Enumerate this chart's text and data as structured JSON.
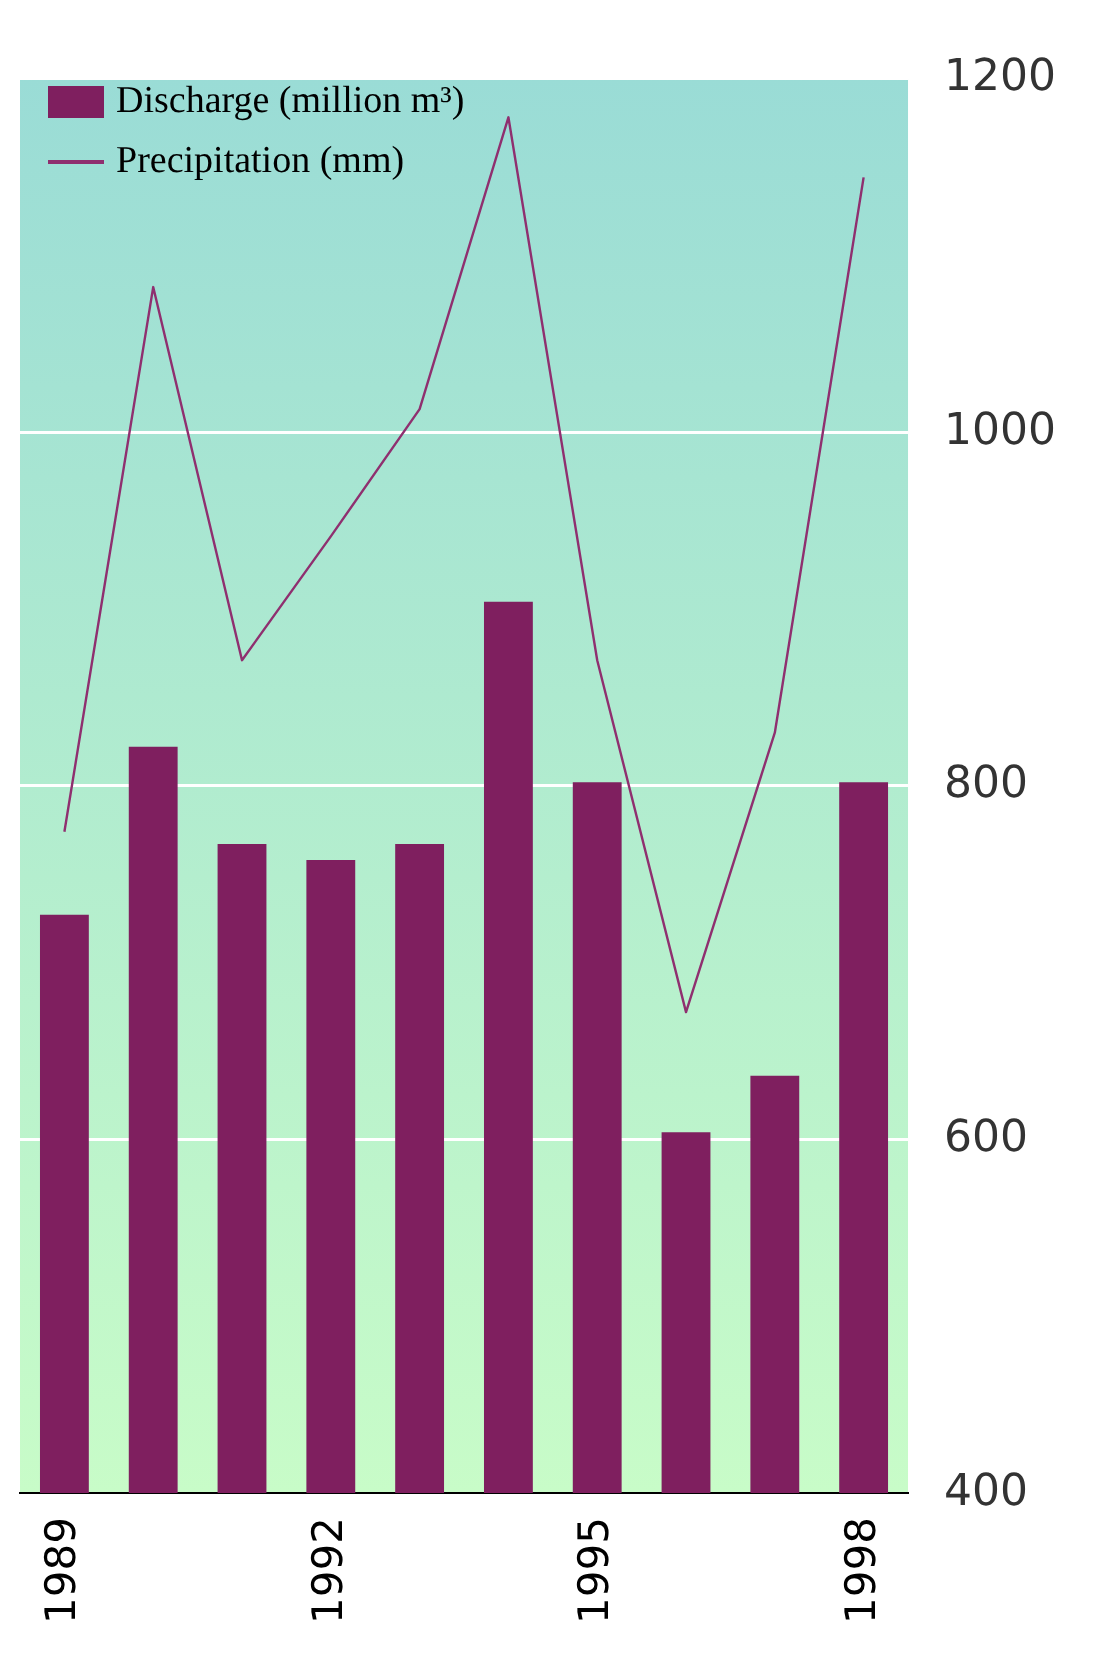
{
  "chart_data": {
    "type": "bar",
    "categories": [
      "1989",
      null,
      null,
      "1992",
      null,
      null,
      "1995",
      null,
      null,
      "1998"
    ],
    "series": [
      {
        "name": "Discharge (million m³)",
        "color": "#7f1f5f",
        "values": [
          727,
          822,
          767,
          758,
          767,
          904,
          802,
          604,
          636,
          802
        ]
      },
      {
        "name": "Precipitation (mm)",
        "type": "line",
        "color": "#8f2f6f",
        "values": [
          774,
          1082,
          871,
          941,
          1013,
          1178,
          871,
          672,
          830,
          1144
        ]
      }
    ],
    "ylim": [
      400,
      1200
    ],
    "yticks": [
      400,
      600,
      800,
      1000,
      1200
    ],
    "grid": "y",
    "legend": "top left",
    "marker": "none",
    "line_style": "solid"
  }
}
